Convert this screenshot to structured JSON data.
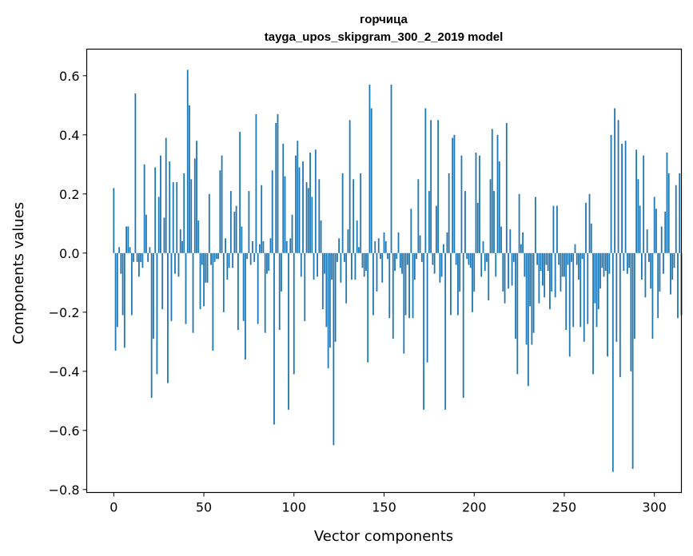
{
  "chart_data": {
    "type": "bar",
    "title_line1": "горчица",
    "title_line2": "tayga_upos_skipgram_300_2_2019 model",
    "xlabel": "Vector components",
    "ylabel": "Components values",
    "xlim": [
      -15,
      315
    ],
    "ylim": [
      -0.81,
      0.69
    ],
    "xticks": [
      0,
      50,
      100,
      150,
      200,
      250,
      300
    ],
    "xtick_labels": [
      "0",
      "50",
      "100",
      "150",
      "200",
      "250",
      "300"
    ],
    "yticks": [
      -0.8,
      -0.6,
      -0.4,
      -0.2,
      0.0,
      0.2,
      0.4,
      0.6
    ],
    "ytick_labels": [
      "−0.8",
      "−0.6",
      "−0.4",
      "−0.2",
      "0.0",
      "0.2",
      "0.4",
      "0.6"
    ],
    "grid": false,
    "bar_color": "#1f77b4",
    "values": [
      0.22,
      -0.33,
      -0.25,
      0.02,
      -0.07,
      -0.21,
      -0.32,
      0.09,
      0.09,
      0.02,
      -0.21,
      -0.03,
      0.54,
      -0.03,
      -0.08,
      -0.03,
      -0.05,
      0.3,
      0.13,
      -0.03,
      0.02,
      -0.49,
      -0.29,
      0.29,
      -0.41,
      0.19,
      0.33,
      -0.19,
      0.12,
      0.39,
      -0.44,
      0.31,
      -0.23,
      0.24,
      -0.07,
      0.24,
      -0.08,
      0.08,
      0.04,
      0.27,
      -0.24,
      0.62,
      0.5,
      0.25,
      -0.27,
      0.32,
      0.38,
      0.11,
      -0.19,
      -0.04,
      -0.18,
      -0.1,
      -0.1,
      0.2,
      -0.04,
      -0.33,
      -0.03,
      -0.02,
      -0.02,
      0.28,
      0.33,
      -0.2,
      0.05,
      -0.09,
      -0.05,
      0.21,
      -0.05,
      0.14,
      0.16,
      -0.26,
      0.41,
      0.09,
      -0.23,
      -0.36,
      -0.02,
      0.21,
      -0.04,
      0.04,
      -0.03,
      0.47,
      -0.24,
      0.03,
      0.23,
      0.04,
      -0.27,
      -0.07,
      -0.06,
      0.05,
      0.28,
      -0.58,
      0.44,
      0.47,
      -0.26,
      -0.13,
      0.37,
      0.26,
      0.04,
      -0.53,
      0.05,
      0.13,
      -0.41,
      0.33,
      0.38,
      0.29,
      -0.08,
      0.31,
      -0.23,
      0.24,
      0.22,
      0.34,
      0.19,
      -0.09,
      0.35,
      -0.08,
      0.25,
      0.11,
      -0.19,
      -0.07,
      -0.25,
      -0.39,
      -0.32,
      -0.09,
      -0.65,
      -0.3,
      -0.03,
      0.05,
      -0.1,
      0.27,
      -0.03,
      -0.17,
      0.08,
      0.45,
      -0.09,
      0.25,
      -0.09,
      0.11,
      0.02,
      0.27,
      -0.05,
      -0.08,
      -0.06,
      -0.37,
      0.57,
      0.49,
      -0.21,
      0.04,
      -0.13,
      0.05,
      -0.02,
      -0.1,
      0.07,
      0.04,
      -0.02,
      -0.22,
      0.57,
      -0.29,
      -0.06,
      -0.02,
      0.07,
      -0.05,
      -0.07,
      -0.34,
      -0.21,
      -0.04,
      -0.22,
      0.15,
      -0.22,
      -0.09,
      -0.02,
      0.25,
      0.06,
      -0.03,
      -0.53,
      0.49,
      -0.37,
      0.21,
      0.45,
      -0.04,
      -0.07,
      0.16,
      0.45,
      -0.1,
      -0.08,
      0.03,
      -0.53,
      0.07,
      0.27,
      -0.21,
      0.39,
      0.4,
      -0.04,
      -0.21,
      -0.13,
      0.33,
      -0.49,
      0.21,
      -0.02,
      -0.04,
      -0.05,
      -0.2,
      -0.13,
      0.34,
      0.17,
      0.33,
      -0.08,
      0.04,
      -0.06,
      -0.03,
      -0.16,
      0.25,
      0.42,
      0.21,
      -0.08,
      0.4,
      0.31,
      0.09,
      -0.13,
      -0.17,
      0.44,
      -0.12,
      0.08,
      -0.11,
      -0.03,
      -0.29,
      -0.41,
      0.2,
      0.03,
      0.07,
      -0.08,
      -0.31,
      -0.45,
      -0.18,
      -0.31,
      -0.27,
      0.19,
      -0.04,
      -0.17,
      -0.06,
      -0.11,
      -0.15,
      -0.04,
      -0.06,
      -0.19,
      -0.13,
      0.16,
      -0.15,
      0.16,
      -0.04,
      -0.13,
      -0.08,
      -0.08,
      -0.26,
      -0.04,
      -0.35,
      -0.03,
      -0.25,
      0.03,
      -0.04,
      -0.09,
      -0.25,
      -0.02,
      -0.3,
      0.17,
      -0.24,
      0.2,
      0.1,
      -0.41,
      -0.17,
      -0.25,
      -0.19,
      -0.12,
      -0.05,
      -0.08,
      -0.06,
      -0.35,
      -0.07,
      0.4,
      -0.74,
      0.49,
      -0.3,
      0.45,
      -0.42,
      0.37,
      -0.06,
      0.38,
      -0.07,
      -0.05,
      -0.4,
      -0.73,
      -0.29,
      0.35,
      0.25,
      0.16,
      -0.09,
      0.33,
      -0.15,
      0.08,
      -0.03,
      -0.12,
      -0.29,
      0.19,
      0.15,
      -0.22,
      -0.13,
      0.09,
      -0.07,
      0.14,
      0.34,
      0.27,
      -0.14,
      -0.09,
      -0.05,
      0.23,
      -0.22,
      0.27,
      -0.21
    ]
  }
}
